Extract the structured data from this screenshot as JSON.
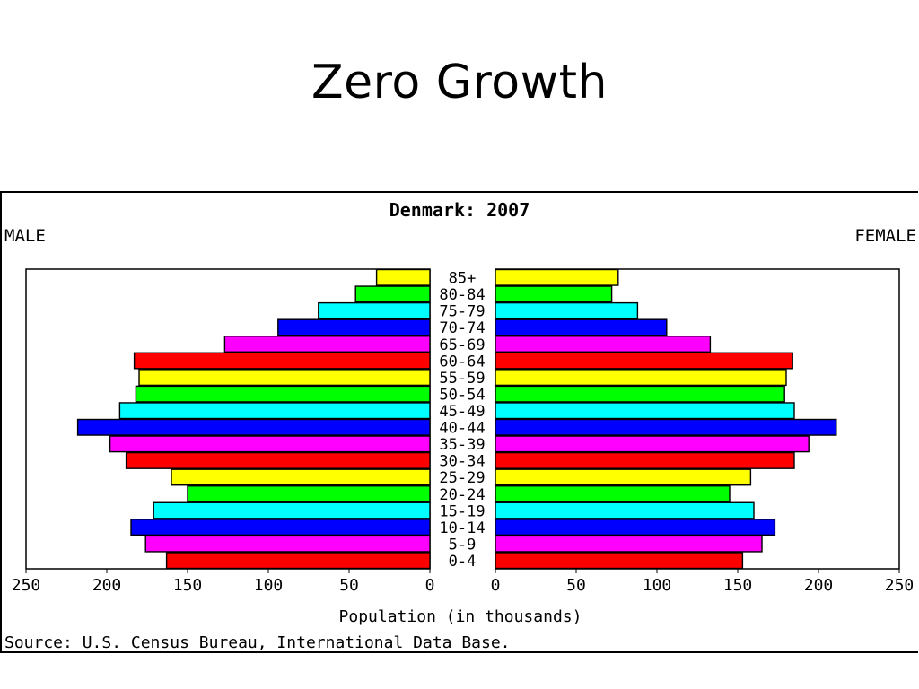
{
  "slide": {
    "title": "Zero Growth"
  },
  "chart_data": {
    "type": "bar",
    "subtype": "population-pyramid",
    "title": "Denmark: 2007",
    "left_label": "MALE",
    "right_label": "FEMALE",
    "xlabel": "Population (in thousands)",
    "source": "Source: U.S. Census Bureau, International Data Base.",
    "xlim": [
      0,
      250
    ],
    "male_ticks": [
      "250",
      "200",
      "150",
      "100",
      "50",
      "0"
    ],
    "female_ticks": [
      "0",
      "50",
      "100",
      "150",
      "200",
      "250"
    ],
    "tick_values": [
      0,
      50,
      100,
      150,
      200,
      250
    ],
    "categories": [
      "85+",
      "80-84",
      "75-79",
      "70-74",
      "65-69",
      "60-64",
      "55-59",
      "50-54",
      "45-49",
      "40-44",
      "35-39",
      "30-34",
      "25-29",
      "20-24",
      "15-19",
      "10-14",
      "5-9",
      "0-4"
    ],
    "colors": [
      "#ffff00",
      "#00ff00",
      "#00ffff",
      "#0000ff",
      "#ff00ff",
      "#ff0000",
      "#ffff00",
      "#00ff00",
      "#00ffff",
      "#0000ff",
      "#ff00ff",
      "#ff0000",
      "#ffff00",
      "#00ff00",
      "#00ffff",
      "#0000ff",
      "#ff00ff",
      "#ff0000"
    ],
    "series": [
      {
        "name": "MALE",
        "values": [
          33,
          46,
          69,
          94,
          127,
          183,
          180,
          182,
          192,
          218,
          198,
          188,
          160,
          150,
          171,
          185,
          176,
          163
        ]
      },
      {
        "name": "FEMALE",
        "values": [
          76,
          72,
          88,
          106,
          133,
          184,
          180,
          179,
          185,
          211,
          194,
          185,
          158,
          145,
          160,
          173,
          165,
          153
        ]
      }
    ],
    "grid": false,
    "legend": "none"
  }
}
